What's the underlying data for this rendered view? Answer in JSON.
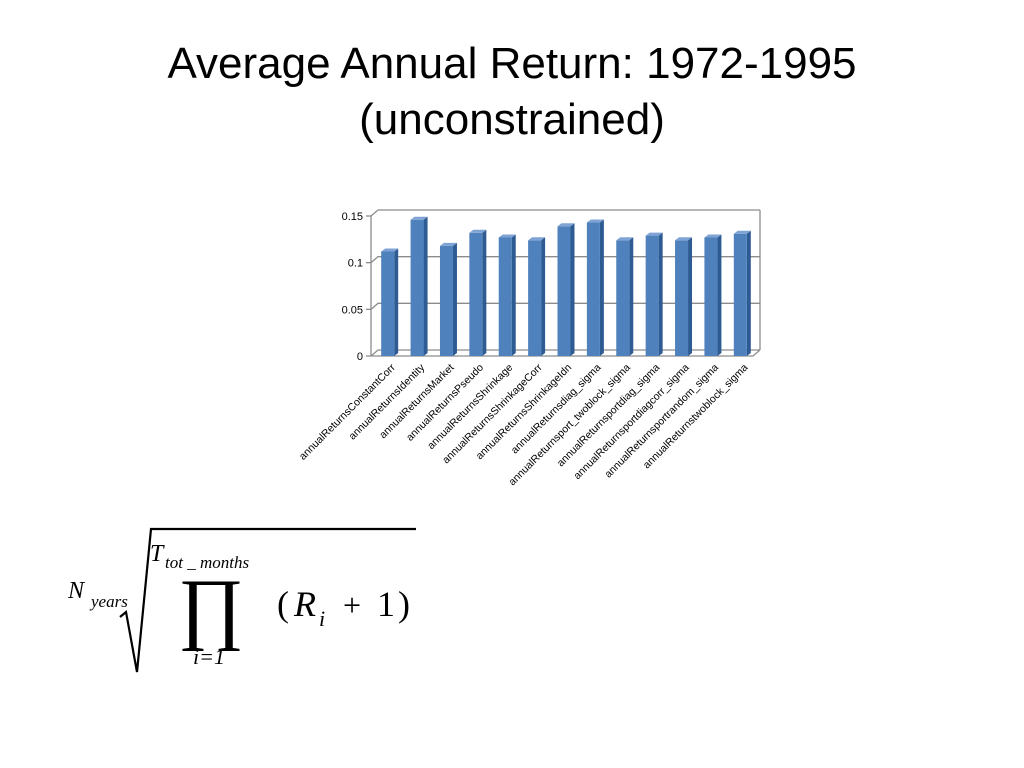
{
  "slide": {
    "title_line1": "Average Annual Return: 1972-1995",
    "title_line2": "(unconstrained)"
  },
  "chart_data": {
    "type": "bar",
    "categories": [
      "annualReturnsConstantCorr",
      "annualReturnsIdentity",
      "annualReturnsMarket",
      "annualReturnsPseudo",
      "annualReturnsShrinkage",
      "annualReturnsShrinkageCorr",
      "annualReturnsShrinkageIdn",
      "annualReturnsdiag_sigma",
      "annualReturnsport_twoblock_sigma",
      "annualReturnsportdiag_sigma",
      "annualReturnsportdiagcorr_sigma",
      "annualReturnsportrandom_sigma",
      "annualReturnstwoblock_sigma"
    ],
    "values": [
      0.112,
      0.146,
      0.118,
      0.132,
      0.127,
      0.124,
      0.139,
      0.143,
      0.124,
      0.129,
      0.124,
      0.127,
      0.131
    ],
    "ylim": [
      0,
      0.15
    ],
    "yticks": [
      "0",
      "0.05",
      "0.1",
      "0.15"
    ],
    "ytick_values": [
      0,
      0.05,
      0.1,
      0.15
    ],
    "grid": true,
    "legend": "none",
    "bar_color": "#4f81bd",
    "bar_top_color": "#7fa3d4",
    "bar_side_color": "#2f5b93",
    "title": "",
    "xlabel": "",
    "ylabel": ""
  },
  "formula": {
    "root_index_base": "N",
    "root_index_sub": "years",
    "product_upper_base": "T",
    "product_upper_sub": "tot _ months",
    "product_symbol": "∏",
    "product_lower": "i=1",
    "open_paren": "(",
    "term_base": "R",
    "term_sub": "i",
    "plus": "+",
    "one": "1",
    "close_paren": ")"
  }
}
